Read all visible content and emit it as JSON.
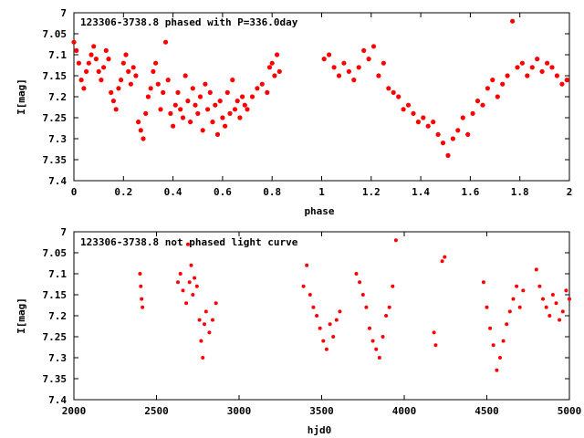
{
  "chart_data": [
    {
      "type": "scatter",
      "title": "123306-3738.8 phased with P=336.0day",
      "xlabel": "phase",
      "ylabel": "I[mag]",
      "xlim": [
        0,
        2
      ],
      "ylim": [
        7.4,
        7
      ],
      "y_inverted": true,
      "xticks": [
        "0",
        "0.2",
        "0.4",
        "0.6",
        "0.8",
        "1",
        "1.2",
        "1.4",
        "1.6",
        "1.8",
        "2"
      ],
      "yticks": [
        "7",
        "7.05",
        "7.1",
        "7.15",
        "7.2",
        "7.25",
        "7.3",
        "7.35",
        "7.4"
      ],
      "marker_color": "#ff0000",
      "grid": false,
      "series": [
        {
          "x": [
            0.0,
            0.01,
            0.02,
            0.03,
            0.04,
            0.05,
            0.06,
            0.07,
            0.08,
            0.09,
            0.1,
            0.11,
            0.12,
            0.13,
            0.14,
            0.15,
            0.16,
            0.17,
            0.18,
            0.19,
            0.2,
            0.21,
            0.22,
            0.23,
            0.24,
            0.25,
            0.26,
            0.27,
            0.28,
            0.29,
            0.3,
            0.31,
            0.32,
            0.33,
            0.34,
            0.35,
            0.36,
            0.37,
            0.38,
            0.39,
            0.4,
            0.41,
            0.42,
            0.43,
            0.44,
            0.45,
            0.46,
            0.47,
            0.48,
            0.49,
            0.5,
            0.51,
            0.52,
            0.53,
            0.54,
            0.55,
            0.56,
            0.57,
            0.58,
            0.59,
            0.6,
            0.61,
            0.62,
            0.63,
            0.64,
            0.65,
            0.66,
            0.67,
            0.68,
            0.69,
            0.7,
            0.72,
            0.74,
            0.76,
            0.78,
            0.79,
            0.8,
            0.81,
            0.82,
            0.83,
            1.01,
            1.03,
            1.05,
            1.07,
            1.09,
            1.11,
            1.13,
            1.15,
            1.17,
            1.19,
            1.21,
            1.23,
            1.25,
            1.27,
            1.29,
            1.31,
            1.33,
            1.35,
            1.37,
            1.39,
            1.41,
            1.43,
            1.45,
            1.47,
            1.49,
            1.51,
            1.53,
            1.55,
            1.57,
            1.59,
            1.61,
            1.63,
            1.65,
            1.67,
            1.69,
            1.71,
            1.73,
            1.75,
            1.77,
            1.79,
            1.81,
            1.83,
            1.85,
            1.87,
            1.89,
            1.91,
            1.93,
            1.95,
            1.97,
            1.99
          ],
          "y": [
            7.07,
            7.09,
            7.12,
            7.16,
            7.18,
            7.14,
            7.12,
            7.1,
            7.08,
            7.11,
            7.14,
            7.16,
            7.13,
            7.09,
            7.11,
            7.19,
            7.21,
            7.23,
            7.18,
            7.16,
            7.12,
            7.1,
            7.14,
            7.17,
            7.13,
            7.15,
            7.26,
            7.28,
            7.3,
            7.24,
            7.2,
            7.18,
            7.14,
            7.12,
            7.17,
            7.23,
            7.19,
            7.07,
            7.16,
            7.24,
            7.27,
            7.22,
            7.19,
            7.23,
            7.25,
            7.15,
            7.21,
            7.26,
            7.18,
            7.22,
            7.24,
            7.2,
            7.28,
            7.17,
            7.23,
            7.19,
            7.26,
            7.22,
            7.29,
            7.21,
            7.25,
            7.27,
            7.19,
            7.24,
            7.16,
            7.23,
            7.21,
            7.25,
            7.2,
            7.22,
            7.23,
            7.2,
            7.18,
            7.17,
            7.19,
            7.13,
            7.12,
            7.15,
            7.1,
            7.14,
            7.11,
            7.1,
            7.13,
            7.15,
            7.12,
            7.14,
            7.16,
            7.13,
            7.09,
            7.11,
            7.08,
            7.15,
            7.12,
            7.18,
            7.19,
            7.2,
            7.23,
            7.22,
            7.24,
            7.26,
            7.25,
            7.27,
            7.26,
            7.29,
            7.31,
            7.34,
            7.3,
            7.28,
            7.25,
            7.29,
            7.24,
            7.21,
            7.22,
            7.18,
            7.16,
            7.2,
            7.17,
            7.15,
            7.02,
            7.13,
            7.12,
            7.15,
            7.13,
            7.11,
            7.14,
            7.12,
            7.13,
            7.15,
            7.17,
            7.16
          ]
        }
      ]
    },
    {
      "type": "scatter",
      "title": "123306-3738.8 not phased light curve",
      "xlabel": "hjd0",
      "ylabel": "I[mag]",
      "xlim": [
        2000,
        5000
      ],
      "ylim": [
        7.4,
        7
      ],
      "y_inverted": true,
      "xticks": [
        "2000",
        "2500",
        "3000",
        "3500",
        "4000",
        "4500",
        "5000"
      ],
      "yticks": [
        "7",
        "7.05",
        "7.1",
        "7.15",
        "7.2",
        "7.25",
        "7.3",
        "7.35",
        "7.4"
      ],
      "marker_color": "#ff0000",
      "grid": false,
      "series": [
        {
          "x": [
            2400,
            2405,
            2410,
            2415,
            2630,
            2645,
            2660,
            2680,
            2690,
            2700,
            2710,
            2720,
            2730,
            2745,
            2760,
            2770,
            2780,
            2790,
            2800,
            2820,
            2840,
            2860,
            3390,
            3410,
            3430,
            3450,
            3470,
            3490,
            3510,
            3530,
            3550,
            3570,
            3590,
            3610,
            3710,
            3730,
            3750,
            3770,
            3790,
            3810,
            3830,
            3850,
            3870,
            3890,
            3910,
            3930,
            3950,
            4180,
            4190,
            4230,
            4245,
            4480,
            4500,
            4520,
            4540,
            4560,
            4580,
            4600,
            4620,
            4640,
            4660,
            4680,
            4700,
            4720,
            4800,
            4820,
            4840,
            4860,
            4880,
            4900,
            4920,
            4940,
            4960,
            4980,
            5000
          ],
          "y": [
            7.1,
            7.13,
            7.16,
            7.18,
            7.12,
            7.1,
            7.14,
            7.17,
            7.03,
            7.12,
            7.08,
            7.15,
            7.11,
            7.13,
            7.21,
            7.26,
            7.3,
            7.22,
            7.19,
            7.24,
            7.21,
            7.17,
            7.13,
            7.08,
            7.15,
            7.18,
            7.2,
            7.23,
            7.26,
            7.28,
            7.22,
            7.25,
            7.21,
            7.19,
            7.1,
            7.12,
            7.15,
            7.18,
            7.23,
            7.26,
            7.28,
            7.3,
            7.25,
            7.2,
            7.18,
            7.13,
            7.02,
            7.24,
            7.27,
            7.07,
            7.06,
            7.12,
            7.18,
            7.23,
            7.27,
            7.33,
            7.3,
            7.26,
            7.22,
            7.19,
            7.16,
            7.13,
            7.18,
            7.14,
            7.09,
            7.13,
            7.16,
            7.18,
            7.2,
            7.15,
            7.17,
            7.21,
            7.19,
            7.14,
            7.16
          ]
        }
      ]
    }
  ]
}
